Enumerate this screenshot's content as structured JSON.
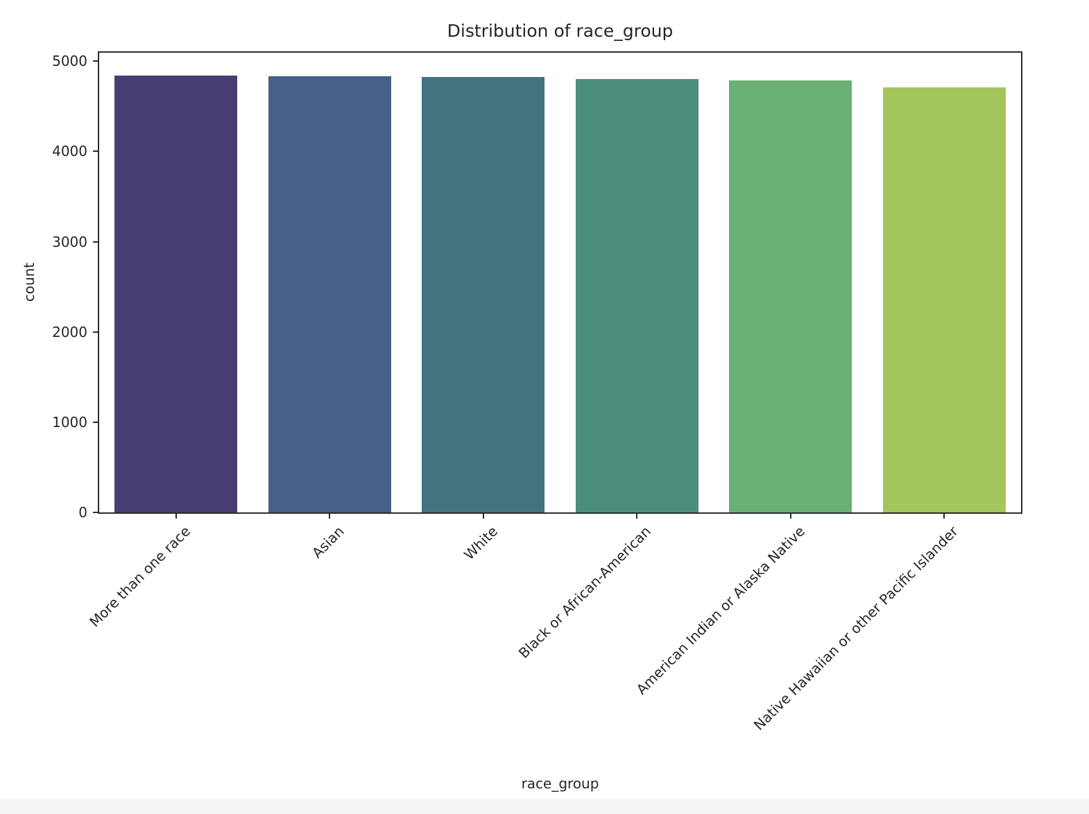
{
  "chart_data": {
    "type": "bar",
    "title": "Distribution of race_group",
    "xlabel": "race_group",
    "ylabel": "count",
    "categories": [
      "More than one race",
      "Asian",
      "White",
      "Black or African-American",
      "American Indian or Alaska Native",
      "Native Hawaiian or other Pacific Islander"
    ],
    "values": [
      4845,
      4830,
      4825,
      4800,
      4790,
      4710
    ],
    "bar_colors": [
      "#483d73",
      "#485f87",
      "#42737f",
      "#4b8e7d",
      "#6ab176",
      "#a3c65c"
    ],
    "ylim": [
      0,
      5095
    ],
    "yticks": [
      0,
      1000,
      2000,
      3000,
      4000,
      5000
    ],
    "grid": false,
    "legend": "none",
    "x_tick_rotation_degrees": 45
  },
  "colors": {
    "background": "#ffffff",
    "text": "#262626",
    "spine": "#2b2b2b"
  }
}
